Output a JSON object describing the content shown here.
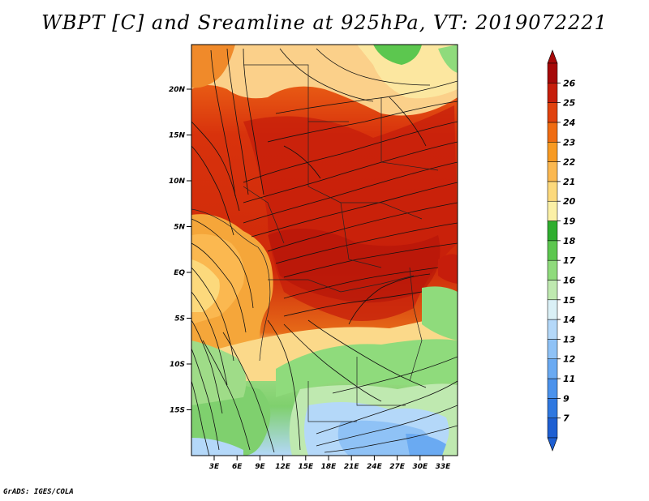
{
  "title": "WBPT [C] and Sreamline at 925hPa, VT: 2019072221",
  "credit": "GrADS: IGES/COLA",
  "map": {
    "lat_ticks": [
      "20N",
      "15N",
      "10N",
      "5N",
      "EQ",
      "5S",
      "10S",
      "15S"
    ],
    "lon_ticks": [
      "3E",
      "6E",
      "9E",
      "12E",
      "15E",
      "18E",
      "21E",
      "24E",
      "27E",
      "30E",
      "33E"
    ]
  },
  "colorbar": {
    "labels": [
      "7",
      "9",
      "11",
      "12",
      "13",
      "14",
      "15",
      "16",
      "17",
      "18",
      "19",
      "20",
      "21",
      "22",
      "23",
      "24",
      "25",
      "26"
    ],
    "colors": [
      "#1e5fd2",
      "#2f78e0",
      "#4b92ec",
      "#6aaaf2",
      "#8fc2f6",
      "#b4d8f9",
      "#daf0f6",
      "#bfe9b0",
      "#8fdb7c",
      "#5cc74f",
      "#2fae2f",
      "#fbf0a6",
      "#fcd97c",
      "#fbb850",
      "#f79a22",
      "#ef6c12",
      "#e0420e",
      "#c61d0b",
      "#a60808"
    ]
  }
}
